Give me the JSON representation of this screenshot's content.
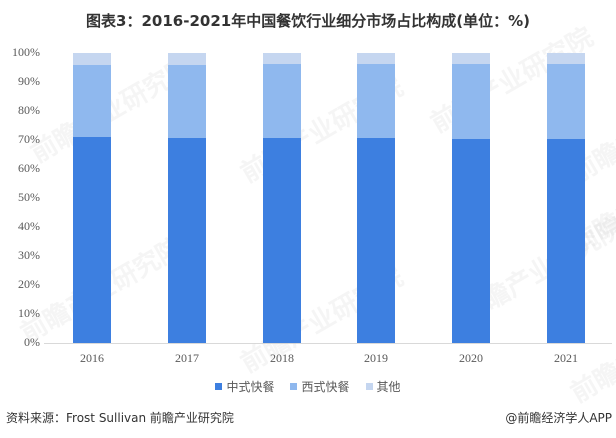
{
  "title": "图表3：2016-2021年中国餐饮行业细分市场占比构成(单位：%)",
  "chart_data": {
    "type": "bar",
    "stacked": true,
    "percent_stacked": true,
    "title": "图表3：2016-2021年中国餐饮行业细分市场占比构成(单位：%)",
    "xlabel": "",
    "ylabel": "",
    "ylim": [
      0,
      100
    ],
    "yticks": [
      "0%",
      "10%",
      "20%",
      "30%",
      "40%",
      "50%",
      "60%",
      "70%",
      "80%",
      "90%",
      "100%"
    ],
    "categories": [
      "2016",
      "2017",
      "2018",
      "2019",
      "2020",
      "2021"
    ],
    "series": [
      {
        "name": "中式快餐",
        "color": "#3d7fe0",
        "values": [
          71.0,
          70.7,
          70.7,
          70.7,
          70.4,
          70.3
        ]
      },
      {
        "name": "西式快餐",
        "color": "#8fb8ee",
        "values": [
          24.9,
          25.2,
          25.5,
          25.5,
          25.8,
          25.9
        ]
      },
      {
        "name": "其他",
        "color": "#c5d6f0",
        "values": [
          4.1,
          4.1,
          3.8,
          3.8,
          3.8,
          3.8
        ]
      }
    ],
    "grid": false,
    "legend_position": "bottom"
  },
  "footer": {
    "source": "资料来源：Frost Sullivan 前瞻产业研究院",
    "credit": "@前瞻经济学人APP"
  },
  "watermark": "前瞻产业研究院"
}
